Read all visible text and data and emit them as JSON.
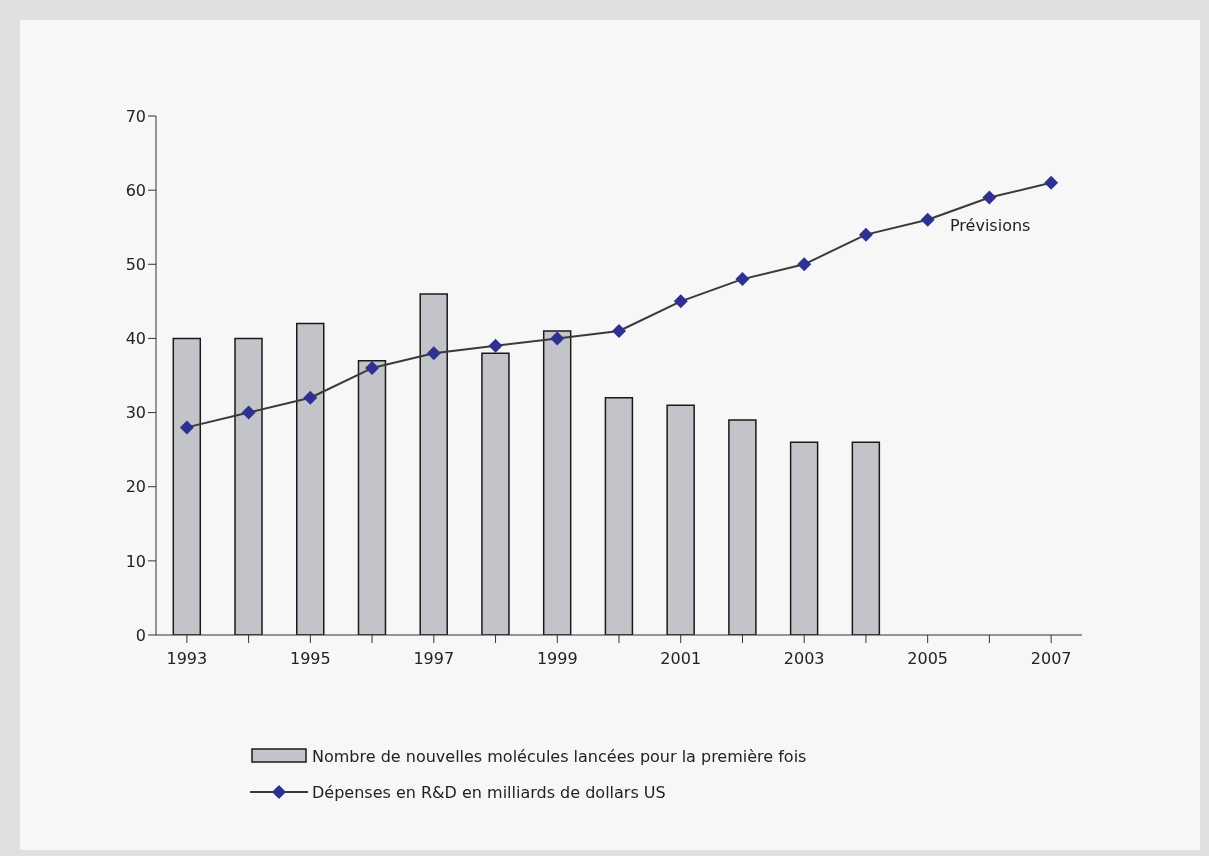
{
  "chart_data": {
    "type": "bar",
    "categories": [
      "1993",
      null,
      "1995",
      null,
      "1997",
      null,
      "1999",
      null,
      "2001",
      null,
      "2003",
      null,
      "2005",
      null,
      "2007"
    ],
    "series": [
      {
        "name": "Nombre de nouvelles molécules lancées pour la première fois",
        "color": "#c3c4c9",
        "values": [
          40,
          40,
          42,
          37,
          46,
          38,
          41,
          32,
          31,
          29,
          26,
          26,
          null,
          null,
          null
        ]
      },
      {
        "name": "Dépenses en R&D en milliards de dollars US",
        "type": "line",
        "color": "#2e3192",
        "values": [
          28,
          30,
          32,
          36,
          38,
          39,
          40,
          41,
          45,
          48,
          50,
          54,
          56,
          59,
          61
        ]
      }
    ],
    "ylim": [
      0,
      70
    ],
    "yticks": [
      0,
      10,
      20,
      30,
      40,
      50,
      60,
      70
    ],
    "annotations": [
      "Prévisions"
    ],
    "grid": false,
    "legend": "bottom",
    "marker": "diamond",
    "line_style": "solid"
  }
}
